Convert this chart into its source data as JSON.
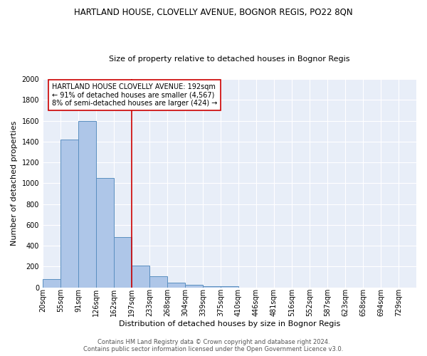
{
  "title1": "HARTLAND HOUSE, CLOVELLY AVENUE, BOGNOR REGIS, PO22 8QN",
  "title2": "Size of property relative to detached houses in Bognor Regis",
  "xlabel": "Distribution of detached houses by size in Bognor Regis",
  "ylabel": "Number of detached properties",
  "bins": [
    "20sqm",
    "55sqm",
    "91sqm",
    "126sqm",
    "162sqm",
    "197sqm",
    "233sqm",
    "268sqm",
    "304sqm",
    "339sqm",
    "375sqm",
    "410sqm",
    "446sqm",
    "481sqm",
    "516sqm",
    "552sqm",
    "587sqm",
    "623sqm",
    "658sqm",
    "694sqm",
    "729sqm"
  ],
  "values": [
    80,
    1420,
    1600,
    1050,
    480,
    210,
    105,
    45,
    25,
    13,
    10,
    0,
    0,
    0,
    0,
    0,
    0,
    0,
    0,
    0,
    0
  ],
  "bar_color": "#AEC6E8",
  "bar_edge_color": "#5A8FC0",
  "vline_x": 5,
  "vline_color": "#CC0000",
  "annotation_text": "HARTLAND HOUSE CLOVELLY AVENUE: 192sqm\n← 91% of detached houses are smaller (4,567)\n8% of semi-detached houses are larger (424) →",
  "annotation_box_color": "#FFFFFF",
  "annotation_box_edge_color": "#CC0000",
  "ylim": [
    0,
    2000
  ],
  "yticks": [
    0,
    200,
    400,
    600,
    800,
    1000,
    1200,
    1400,
    1600,
    1800,
    2000
  ],
  "background_color": "#E8EEF8",
  "grid_color": "#FFFFFF",
  "footer": "Contains HM Land Registry data © Crown copyright and database right 2024.\nContains public sector information licensed under the Open Government Licence v3.0.",
  "title1_fontsize": 8.5,
  "title2_fontsize": 8,
  "xlabel_fontsize": 8,
  "ylabel_fontsize": 8,
  "tick_fontsize": 7,
  "annotation_fontsize": 7,
  "footer_fontsize": 6
}
